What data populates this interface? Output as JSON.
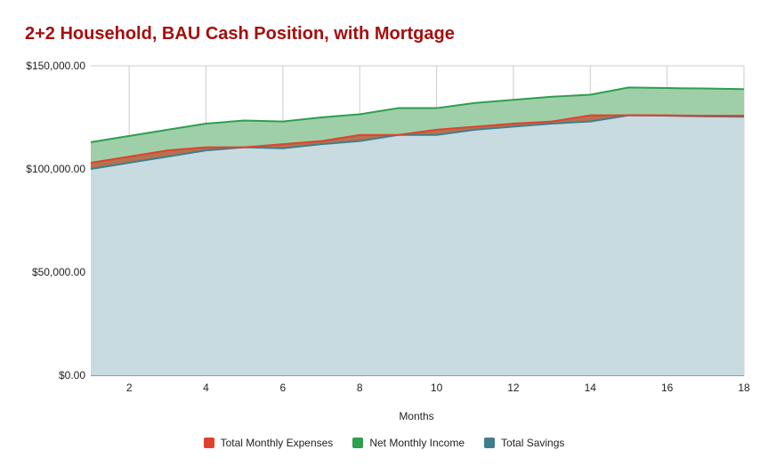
{
  "chart_data": {
    "type": "area",
    "title": "2+2 Household, BAU Cash Position, with Mortgage",
    "xlabel": "Months",
    "ylabel": "",
    "x": [
      1,
      2,
      3,
      4,
      5,
      6,
      7,
      8,
      9,
      10,
      11,
      12,
      13,
      14,
      15,
      16,
      17,
      18
    ],
    "xlim": [
      1,
      18
    ],
    "xticks": [
      2,
      4,
      6,
      8,
      10,
      12,
      14,
      16,
      18
    ],
    "ylim": [
      0,
      150000
    ],
    "yticks": [
      0,
      50000,
      100000,
      150000
    ],
    "ytick_labels": [
      "$0.00",
      "$50,000.00",
      "$100,000.00",
      "$150,000.00"
    ],
    "grid": true,
    "legend_position": "bottom",
    "series": [
      {
        "name": "Total Monthly Expenses",
        "color": "#e0412f",
        "values": [
          103000,
          106000,
          109000,
          110500,
          110500,
          112000,
          113500,
          116500,
          116500,
          119000,
          120500,
          122000,
          123000,
          126000,
          126000,
          126000,
          125800,
          125800
        ]
      },
      {
        "name": "Net Monthly Income",
        "color": "#2e9e4f",
        "values": [
          113000,
          116000,
          119000,
          122000,
          123500,
          123000,
          125000,
          126500,
          129500,
          129500,
          132000,
          133500,
          135000,
          136000,
          139500,
          139200,
          139000,
          138700
        ]
      },
      {
        "name": "Total Savings",
        "color": "#3f7f8c",
        "values": [
          100000,
          103000,
          106000,
          109000,
          110500,
          110000,
          112000,
          113500,
          116500,
          116500,
          119000,
          120500,
          122000,
          123000,
          126000,
          125800,
          125500,
          125300
        ]
      }
    ]
  }
}
